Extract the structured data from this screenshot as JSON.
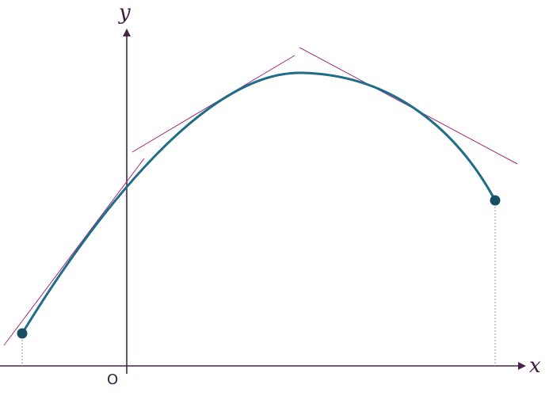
{
  "axes": {
    "x_label": "x",
    "y_label": "y",
    "origin_label": "O"
  }
}
